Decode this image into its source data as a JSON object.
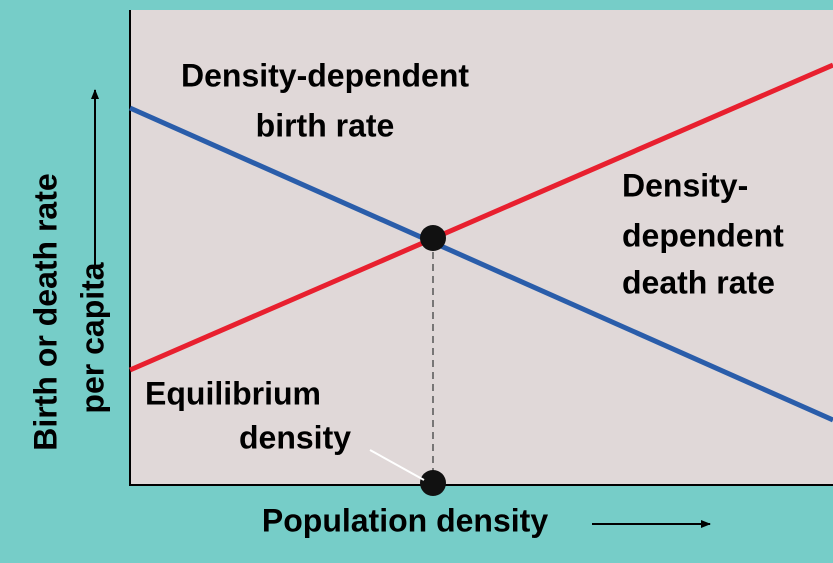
{
  "diagram": {
    "y_axis_label": [
      "Birth or death rate",
      "per capita"
    ],
    "x_axis_label": "Population density",
    "birth_rate_label": [
      "Density-dependent",
      "birth rate"
    ],
    "death_rate_label": [
      "Density-",
      "dependent",
      "death rate"
    ],
    "equilibrium_label": [
      "Equilibrium",
      "density"
    ]
  }
}
